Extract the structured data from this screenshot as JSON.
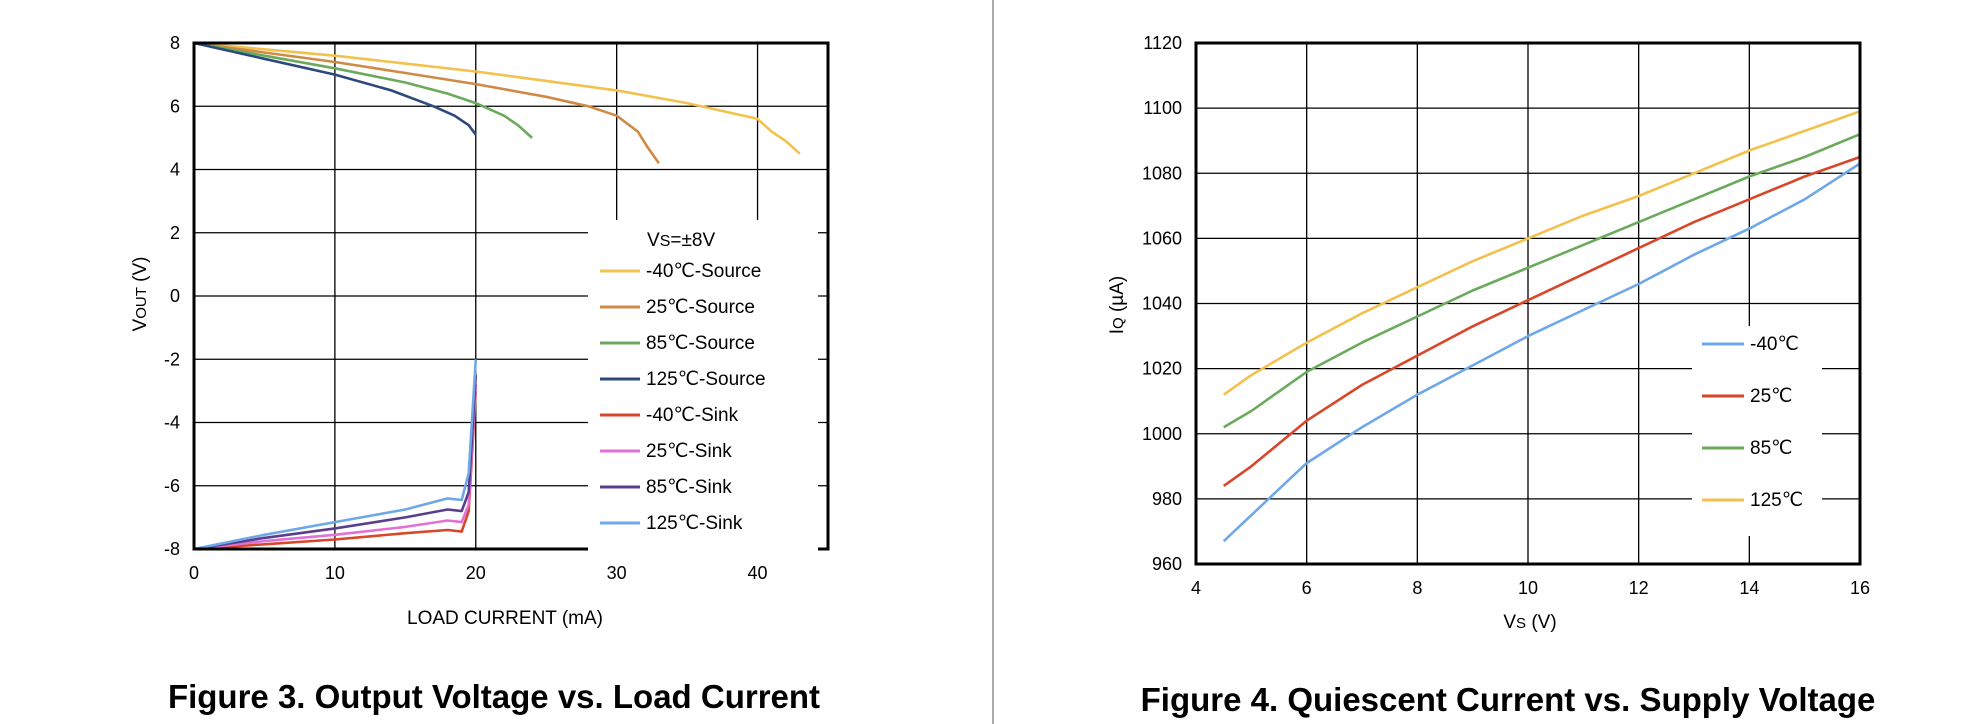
{
  "chart_data": [
    {
      "type": "line",
      "caption": "Figure 3. Output Voltage vs. Load Current",
      "xlabel": "LOAD CURRENT (mA)",
      "ylabel_main": "V",
      "ylabel_sub": "OUT",
      "ylabel_unit": " (V)",
      "xlim": [
        0,
        45
      ],
      "ylim": [
        -8,
        8
      ],
      "xticks": [
        "0",
        "10",
        "20",
        "30",
        "40"
      ],
      "yticks": [
        "-8",
        "-6",
        "-4",
        "-2",
        "0",
        "2",
        "4",
        "6",
        "8"
      ],
      "grid": true,
      "legend_title_main": "V",
      "legend_title_sub": "S",
      "legend_title_rest": "=±8V",
      "legend_position": "right",
      "series": [
        {
          "name": "-40℃-Source",
          "color": "#F2C14E",
          "points": [
            [
              0,
              8
            ],
            [
              5,
              7.8
            ],
            [
              10,
              7.6
            ],
            [
              15,
              7.35
            ],
            [
              20,
              7.1
            ],
            [
              25,
              6.8
            ],
            [
              30,
              6.5
            ],
            [
              35,
              6.1
            ],
            [
              40,
              5.6
            ],
            [
              41,
              5.2
            ],
            [
              42,
              4.9
            ],
            [
              43,
              4.5
            ]
          ]
        },
        {
          "name": "25℃-Source",
          "color": "#D08A46",
          "points": [
            [
              0,
              8
            ],
            [
              5,
              7.7
            ],
            [
              10,
              7.4
            ],
            [
              15,
              7.05
            ],
            [
              20,
              6.7
            ],
            [
              25,
              6.3
            ],
            [
              28,
              6.0
            ],
            [
              30,
              5.7
            ],
            [
              31.5,
              5.2
            ],
            [
              32.2,
              4.7
            ],
            [
              33,
              4.2
            ]
          ]
        },
        {
          "name": "85℃-Source",
          "color": "#6BAA5C",
          "points": [
            [
              0,
              8
            ],
            [
              5,
              7.6
            ],
            [
              10,
              7.2
            ],
            [
              15,
              6.75
            ],
            [
              18,
              6.4
            ],
            [
              20,
              6.1
            ],
            [
              22,
              5.7
            ],
            [
              23,
              5.4
            ],
            [
              24,
              5.0
            ]
          ]
        },
        {
          "name": "125℃-Source",
          "color": "#2E4A7D",
          "points": [
            [
              0,
              8
            ],
            [
              5,
              7.5
            ],
            [
              10,
              7.0
            ],
            [
              14,
              6.5
            ],
            [
              17,
              6.0
            ],
            [
              18.5,
              5.7
            ],
            [
              19.5,
              5.4
            ],
            [
              20,
              5.1
            ]
          ]
        },
        {
          "name": "-40℃-Sink",
          "color": "#D9472B",
          "points": [
            [
              0,
              -8
            ],
            [
              5,
              -7.85
            ],
            [
              10,
              -7.7
            ],
            [
              15,
              -7.5
            ],
            [
              18,
              -7.4
            ],
            [
              19,
              -7.45
            ],
            [
              19.5,
              -6.8
            ],
            [
              20,
              -3.0
            ]
          ]
        },
        {
          "name": "25℃-Sink",
          "color": "#E071D6",
          "points": [
            [
              0,
              -8
            ],
            [
              5,
              -7.75
            ],
            [
              10,
              -7.55
            ],
            [
              15,
              -7.3
            ],
            [
              18,
              -7.1
            ],
            [
              19,
              -7.15
            ],
            [
              19.5,
              -6.6
            ],
            [
              20,
              -2.8
            ]
          ]
        },
        {
          "name": "85℃-Sink",
          "color": "#5A3E8E",
          "points": [
            [
              0,
              -8
            ],
            [
              5,
              -7.65
            ],
            [
              10,
              -7.35
            ],
            [
              15,
              -7.0
            ],
            [
              18,
              -6.75
            ],
            [
              19,
              -6.8
            ],
            [
              19.5,
              -6.2
            ],
            [
              20,
              -2.5
            ]
          ]
        },
        {
          "name": "125℃-Sink",
          "color": "#6FA8E8",
          "points": [
            [
              0,
              -8
            ],
            [
              5,
              -7.55
            ],
            [
              10,
              -7.15
            ],
            [
              15,
              -6.75
            ],
            [
              18,
              -6.4
            ],
            [
              19,
              -6.45
            ],
            [
              19.5,
              -5.6
            ],
            [
              20,
              -2.0
            ]
          ]
        }
      ]
    },
    {
      "type": "line",
      "caption": "Figure 4. Quiescent Current vs. Supply Voltage",
      "xlabel_main": "V",
      "xlabel_sub": "S",
      "xlabel_unit": " (V)",
      "ylabel_main": "I",
      "ylabel_sub": "Q",
      "ylabel_unit": " (µA)",
      "xlim": [
        4,
        16
      ],
      "ylim": [
        960,
        1120
      ],
      "xticks": [
        "4",
        "6",
        "8",
        "10",
        "12",
        "14",
        "16"
      ],
      "yticks": [
        "960",
        "980",
        "1000",
        "1020",
        "1040",
        "1060",
        "1080",
        "1100",
        "1120"
      ],
      "grid": true,
      "legend_position": "right",
      "series": [
        {
          "name": "-40℃",
          "color": "#6FA8E8",
          "points": [
            [
              4.5,
              967
            ],
            [
              5,
              975
            ],
            [
              5.5,
              983
            ],
            [
              6,
              991
            ],
            [
              7,
              1002
            ],
            [
              8,
              1012
            ],
            [
              9,
              1021
            ],
            [
              10,
              1030
            ],
            [
              11,
              1038
            ],
            [
              12,
              1046
            ],
            [
              13,
              1055
            ],
            [
              14,
              1063
            ],
            [
              15,
              1072
            ],
            [
              16,
              1083
            ]
          ]
        },
        {
          "name": "25℃",
          "color": "#D9472B",
          "points": [
            [
              4.5,
              984
            ],
            [
              5,
              990
            ],
            [
              5.5,
              997
            ],
            [
              6,
              1004
            ],
            [
              7,
              1015
            ],
            [
              8,
              1024
            ],
            [
              9,
              1033
            ],
            [
              10,
              1041
            ],
            [
              11,
              1049
            ],
            [
              12,
              1057
            ],
            [
              13,
              1065
            ],
            [
              14,
              1072
            ],
            [
              15,
              1079
            ],
            [
              16,
              1085
            ]
          ]
        },
        {
          "name": "85℃",
          "color": "#6BAA5C",
          "points": [
            [
              4.5,
              1002
            ],
            [
              5,
              1007
            ],
            [
              5.5,
              1013
            ],
            [
              6,
              1019
            ],
            [
              7,
              1028
            ],
            [
              8,
              1036
            ],
            [
              9,
              1044
            ],
            [
              10,
              1051
            ],
            [
              11,
              1058
            ],
            [
              12,
              1065
            ],
            [
              13,
              1072
            ],
            [
              14,
              1079
            ],
            [
              15,
              1085
            ],
            [
              16,
              1092
            ]
          ]
        },
        {
          "name": "125℃",
          "color": "#F2C14E",
          "points": [
            [
              4.5,
              1012
            ],
            [
              5,
              1018
            ],
            [
              5.5,
              1023
            ],
            [
              6,
              1028
            ],
            [
              7,
              1037
            ],
            [
              8,
              1045
            ],
            [
              9,
              1053
            ],
            [
              10,
              1060
            ],
            [
              11,
              1067
            ],
            [
              12,
              1073
            ],
            [
              13,
              1080
            ],
            [
              14,
              1087
            ],
            [
              15,
              1093
            ],
            [
              16,
              1099
            ]
          ]
        }
      ]
    }
  ]
}
